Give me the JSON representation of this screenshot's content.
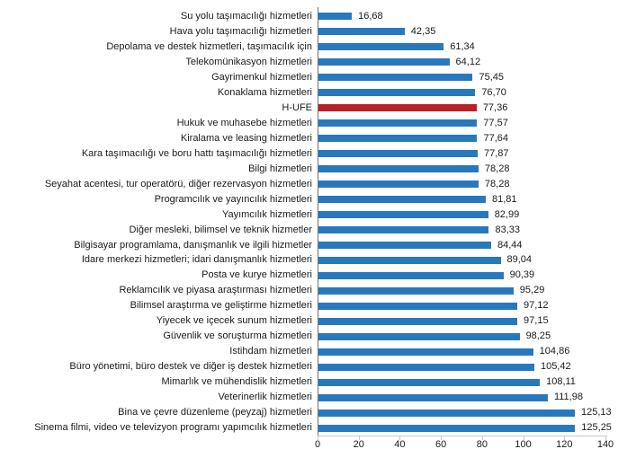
{
  "chart_data": {
    "type": "bar",
    "orientation": "horizontal",
    "title": "",
    "xlabel": "",
    "ylabel": "",
    "categories": [
      "Su yolu taşımacılığı hizmetleri",
      "Hava yolu taşımacılığı hizmetleri",
      "Depolama ve destek hizmetleri, taşımacılık için",
      "Telekomünikasyon hizmetleri",
      "Gayrimenkul hizmetleri",
      "Konaklama hizmetleri",
      "H-ÜFE",
      "Hukuk ve muhasebe hizmetleri",
      "Kiralama ve leasing hizmetleri",
      "Kara taşımacılığı ve boru hattı taşımacılığı hizmetleri",
      "Bilgi hizmetleri",
      "Seyahat acentesi, tur operatörü, diğer rezervasyon hizmetleri",
      "Programcılık ve yayıncılık hizmetleri",
      "Yayımcılık hizmetleri",
      "Diğer mesleki, bilimsel ve teknik hizmetler",
      "Bilgisayar programlama, danışmanlık ve ilgili hizmetler",
      "İdare merkezi hizmetleri; idari danışmanlık hizmetleri",
      "Posta ve kurye hizmetleri",
      "Reklamcılık ve piyasa araştırması hizmetleri",
      "Bilimsel araştırma ve geliştirme hizmetleri",
      "Yiyecek ve içecek sunum hizmetleri",
      "Güvenlik ve soruşturma hizmetleri",
      "İstihdam hizmetleri",
      "Büro yönetimi, büro destek ve diğer iş destek hizmetleri",
      "Mimarlık ve mühendislik hizmetleri",
      "Veterinerlik hizmetleri",
      "Bina ve çevre düzenleme (peyzaj) hizmetleri",
      "Sinema filmi, video ve televizyon programı yapımcılık hizmetleri"
    ],
    "values": [
      16.68,
      42.35,
      61.34,
      64.12,
      75.45,
      76.7,
      77.36,
      77.57,
      77.64,
      77.87,
      78.28,
      78.28,
      81.81,
      82.99,
      83.33,
      84.44,
      89.04,
      90.39,
      95.29,
      97.12,
      97.15,
      98.25,
      104.86,
      105.42,
      108.11,
      111.98,
      125.13,
      125.25
    ],
    "value_labels": [
      "16,68",
      "42,35",
      "61,34",
      "64,12",
      "75,45",
      "76,70",
      "77,36",
      "77,57",
      "77,64",
      "77,87",
      "78,28",
      "78,28",
      "81,81",
      "82,99",
      "83,33",
      "84,44",
      "89,04",
      "90,39",
      "95,29",
      "97,12",
      "97,15",
      "98,25",
      "104,86",
      "105,42",
      "108,11",
      "111,98",
      "125,13",
      "125,25"
    ],
    "highlight_category": "H-ÜFE",
    "highlight_index": 6,
    "bar_color": "#2878BE",
    "highlight_color": "#B92025",
    "xlim": [
      0,
      140
    ],
    "x_ticks": [
      0,
      20,
      40,
      60,
      80,
      100,
      120,
      140
    ],
    "grid": false,
    "legend": "none",
    "decimal_separator": ","
  },
  "colors": {
    "background": "#FFFFFF",
    "category_axis_line": "#737373",
    "value_axis_line": "#C9C9C9",
    "text": "#1A1A1A"
  }
}
